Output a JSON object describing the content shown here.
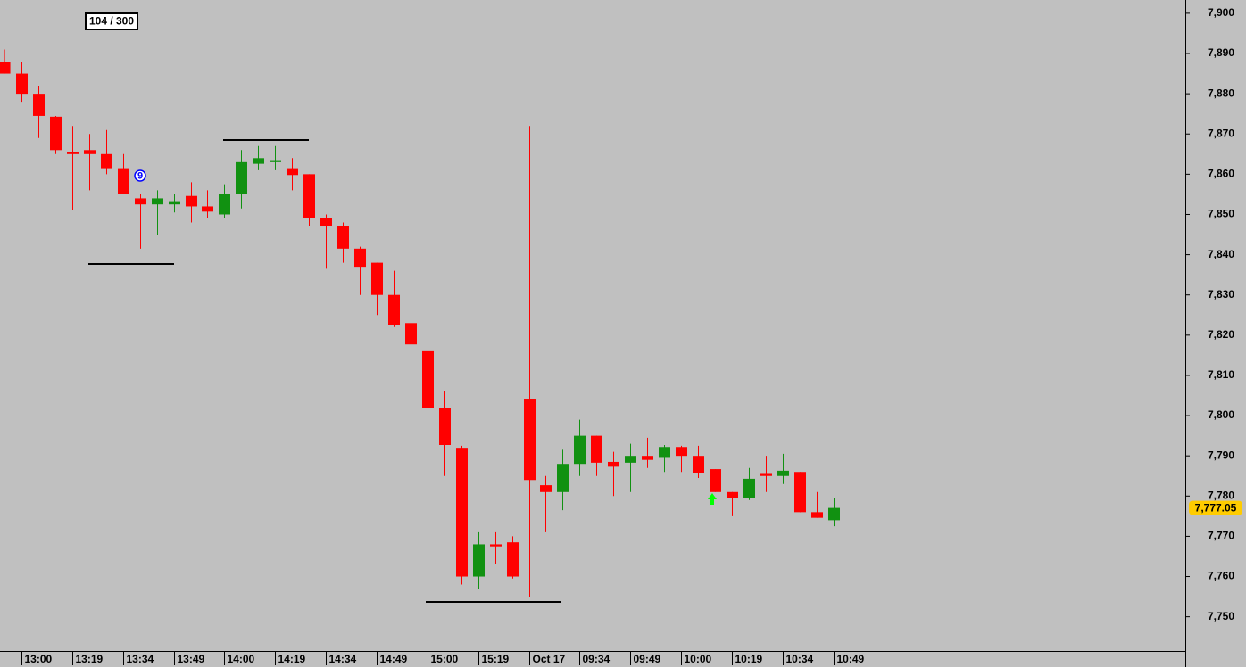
{
  "chart_data": {
    "type": "candlestick",
    "counter": "104 / 300",
    "signal": "9",
    "categories": [
      "13:00",
      null,
      null,
      "13:19",
      null,
      null,
      "13:34",
      null,
      null,
      "13:49",
      null,
      null,
      "14:00",
      null,
      null,
      "14:19",
      null,
      null,
      "14:34",
      null,
      null,
      "14:49",
      null,
      null,
      "15:00",
      null,
      null,
      "15:19",
      null,
      null,
      "Oct 17",
      null,
      null,
      "09:34",
      null,
      null,
      "09:49",
      null,
      null,
      "10:00",
      null,
      null,
      "10:19",
      null,
      null,
      "10:34",
      null,
      null,
      "10:49"
    ],
    "leading_bar": {
      "open": 7888,
      "high": 7891,
      "low": 7885,
      "close": 7885
    },
    "open": [
      7885,
      7880,
      7874.3,
      7865.5,
      7866,
      7865,
      7861.5,
      7854,
      7852.5,
      7852.5,
      7854.6,
      7852,
      7850,
      7855.1,
      7862.6,
      7863,
      7861.5,
      7860,
      7849,
      7847,
      7841.5,
      7838,
      7830,
      7823,
      7816,
      7802,
      7792,
      7760,
      7768,
      7768.5,
      7804,
      7782.7,
      7781,
      7788,
      7795,
      7788.5,
      7788.3,
      7790,
      7789.5,
      7792.2,
      7790,
      7786.7,
      7781,
      7779.6,
      7785.5,
      7785,
      7786,
      7776,
      7774
    ],
    "high": [
      7888,
      7882,
      7874.5,
      7872,
      7870,
      7871,
      7865,
      7855,
      7856,
      7855,
      7858,
      7856,
      7857.5,
      7866,
      7867,
      7867,
      7864,
      7860,
      7850,
      7848,
      7842,
      7838,
      7836,
      7823,
      7817,
      7806,
      7792.5,
      7771,
      7771,
      7770,
      7872,
      7785,
      7791.5,
      7799,
      7795,
      7791,
      7793,
      7794.5,
      7792.7,
      7792.5,
      7792.5,
      7786.7,
      7781,
      7787,
      7790,
      7790.5,
      7786,
      7781,
      7779.5
    ],
    "low": [
      7878,
      7869,
      7865,
      7851,
      7856,
      7860,
      7855,
      7841.5,
      7845,
      7850.5,
      7848,
      7849,
      7849,
      7851.5,
      7861,
      7861,
      7856,
      7847,
      7836.5,
      7838,
      7830,
      7825,
      7822,
      7811,
      7799,
      7785,
      7758,
      7757,
      7763,
      7759.5,
      7755,
      7771,
      7776.5,
      7785,
      7785,
      7780,
      7781,
      7787,
      7786,
      7786,
      7784.5,
      7781,
      7775,
      7779,
      7781,
      7783,
      7776,
      7774.6,
      7772.5
    ],
    "close": [
      7880,
      7874.5,
      7866,
      7865,
      7865,
      7861.5,
      7855,
      7852.5,
      7854,
      7853.3,
      7852,
      7850.7,
      7855.1,
      7863,
      7864,
      7863.5,
      7859.8,
      7849,
      7847,
      7841.5,
      7837,
      7830,
      7822.6,
      7817.7,
      7802,
      7792.7,
      7760,
      7768,
      7767.5,
      7760,
      7784,
      7781,
      7788,
      7795,
      7788.3,
      7787.3,
      7790,
      7789,
      7792.2,
      7790,
      7785.8,
      7781,
      7779.6,
      7784.3,
      7785,
      7786.3,
      7776,
      7774.6,
      7777.05
    ],
    "last_price": {
      "value": 7777.05,
      "label": "7,777.05"
    },
    "up_color": "#119111",
    "down_color": "#ff0000",
    "ylim": [
      7741.5,
      7903.3
    ],
    "yticks": [
      {
        "value": 7750,
        "label": "7,750"
      },
      {
        "value": 7760,
        "label": "7,760"
      },
      {
        "value": 7770,
        "label": "7,770"
      },
      {
        "value": 7780,
        "label": "7,780"
      },
      {
        "value": 7790,
        "label": "7,790"
      },
      {
        "value": 7800,
        "label": "7,800"
      },
      {
        "value": 7810,
        "label": "7,810"
      },
      {
        "value": 7820,
        "label": "7,820"
      },
      {
        "value": 7830,
        "label": "7,830"
      },
      {
        "value": 7840,
        "label": "7,840"
      },
      {
        "value": 7850,
        "label": "7,850"
      },
      {
        "value": 7860,
        "label": "7,860"
      },
      {
        "value": 7870,
        "label": "7,870"
      },
      {
        "value": 7880,
        "label": "7,880"
      },
      {
        "value": 7890,
        "label": "7,890"
      },
      {
        "value": 7900,
        "label": "7,900"
      }
    ]
  }
}
